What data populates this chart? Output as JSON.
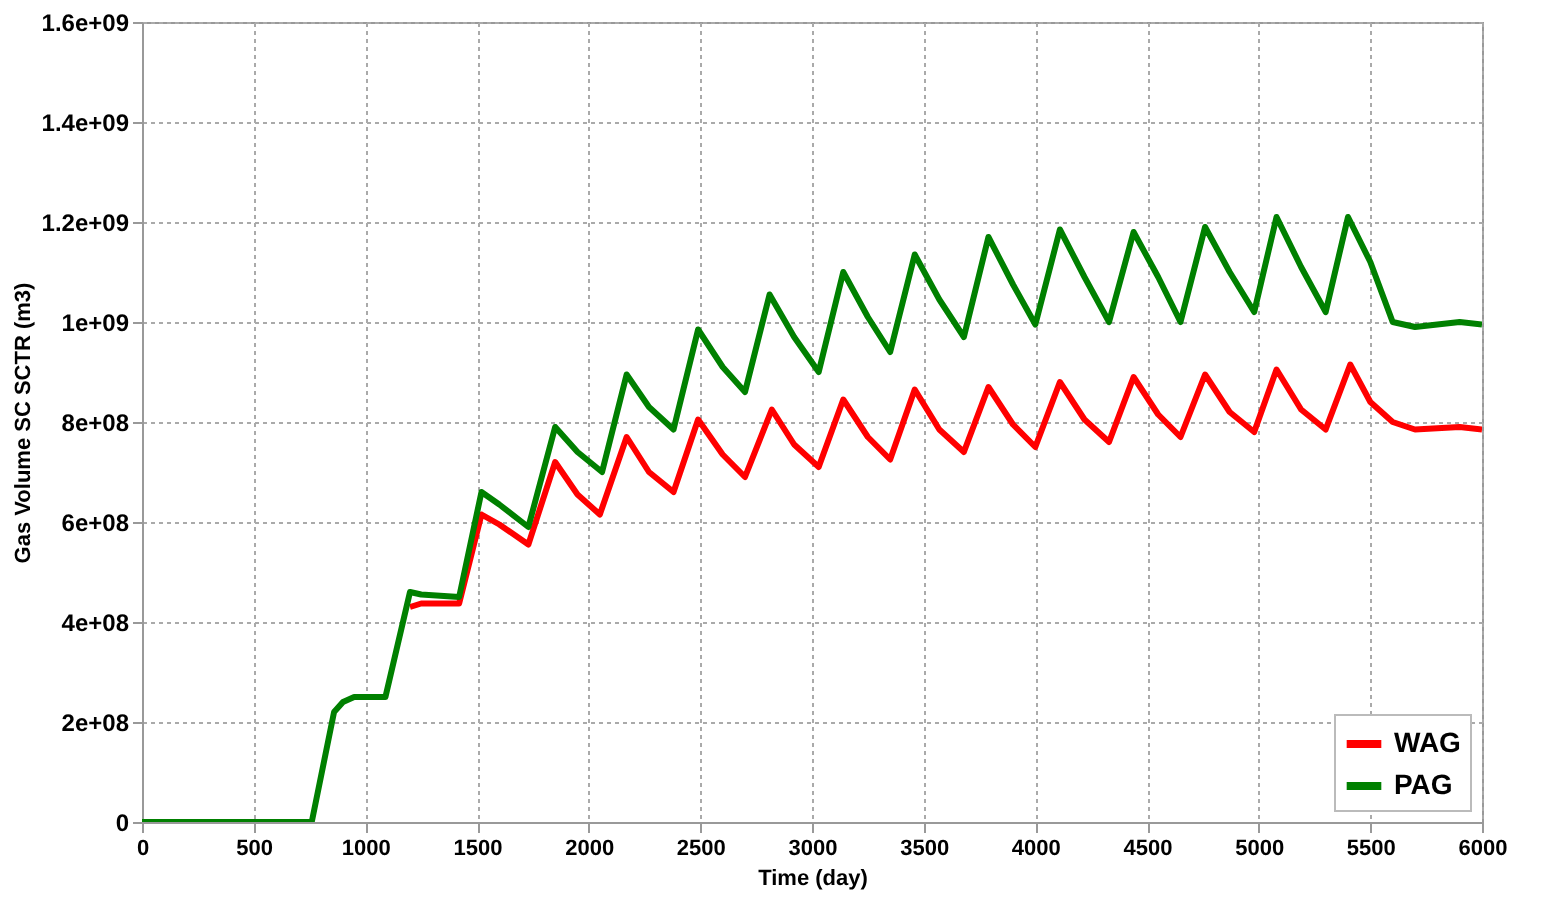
{
  "chart_data": {
    "type": "line",
    "xlabel": "Time (day)",
    "ylabel": "Gas Volume SC SCTR (m3)",
    "xlim": [
      0,
      6000
    ],
    "xticks": [
      0,
      500,
      1000,
      1500,
      2000,
      2500,
      3000,
      3500,
      4000,
      4500,
      5000,
      5500,
      6000
    ],
    "ylim": [
      0,
      1600000000
    ],
    "yticks": [
      {
        "value": 0,
        "label": "0"
      },
      {
        "value": 200000000,
        "label": "2e+08"
      },
      {
        "value": 400000000,
        "label": "4e+08"
      },
      {
        "value": 600000000,
        "label": "6e+08"
      },
      {
        "value": 800000000,
        "label": "8e+08"
      },
      {
        "value": 1000000000,
        "label": "1e+09"
      },
      {
        "value": 1200000000,
        "label": "1.2e+09"
      },
      {
        "value": 1400000000,
        "label": "1.4e+09"
      },
      {
        "value": 1600000000,
        "label": "1.6e+09"
      }
    ],
    "grid": true,
    "legend": "bottom right",
    "marker": "none",
    "line_style": "solid",
    "series": [
      {
        "name": "WAG",
        "color": "#ff0000",
        "x": [
          1200,
          1250,
          1420,
          1520,
          1600,
          1730,
          1850,
          1950,
          2050,
          2170,
          2270,
          2380,
          2490,
          2600,
          2700,
          2820,
          2920,
          3030,
          3140,
          3250,
          3350,
          3460,
          3570,
          3680,
          3790,
          3900,
          4000,
          4110,
          4220,
          4330,
          4440,
          4550,
          4650,
          4760,
          4870,
          4980,
          5080,
          5190,
          5300,
          5410,
          5500,
          5600,
          5700,
          5900,
          6000
        ],
        "values": [
          430000000,
          437000000,
          437000000,
          615000000,
          595000000,
          555000000,
          720000000,
          655000000,
          615000000,
          770000000,
          700000000,
          660000000,
          805000000,
          735000000,
          690000000,
          825000000,
          755000000,
          710000000,
          845000000,
          770000000,
          725000000,
          865000000,
          785000000,
          740000000,
          870000000,
          795000000,
          750000000,
          880000000,
          805000000,
          760000000,
          890000000,
          815000000,
          770000000,
          895000000,
          820000000,
          780000000,
          905000000,
          825000000,
          785000000,
          915000000,
          840000000,
          800000000,
          785000000,
          790000000,
          785000000
        ]
      },
      {
        "name": "PAG",
        "color": "#008000",
        "x": [
          0,
          760,
          860,
          900,
          950,
          1090,
          1200,
          1250,
          1420,
          1520,
          1600,
          1730,
          1850,
          1950,
          2060,
          2170,
          2270,
          2380,
          2490,
          2600,
          2700,
          2810,
          2920,
          3030,
          3140,
          3250,
          3350,
          3460,
          3570,
          3680,
          3790,
          3900,
          4000,
          4110,
          4220,
          4330,
          4440,
          4550,
          4650,
          4760,
          4870,
          4980,
          5080,
          5190,
          5300,
          5400,
          5500,
          5600,
          5700,
          5900,
          6000
        ],
        "values": [
          0,
          0,
          220000000,
          240000000,
          250000000,
          250000000,
          460000000,
          455000000,
          450000000,
          660000000,
          635000000,
          590000000,
          790000000,
          740000000,
          700000000,
          895000000,
          830000000,
          785000000,
          985000000,
          910000000,
          860000000,
          1055000000,
          970000000,
          900000000,
          1100000000,
          1010000000,
          940000000,
          1135000000,
          1045000000,
          970000000,
          1170000000,
          1075000000,
          995000000,
          1185000000,
          1090000000,
          1000000000,
          1180000000,
          1090000000,
          1000000000,
          1190000000,
          1100000000,
          1020000000,
          1210000000,
          1110000000,
          1020000000,
          1210000000,
          1120000000,
          1000000000,
          990000000,
          1000000000,
          995000000
        ]
      }
    ]
  }
}
